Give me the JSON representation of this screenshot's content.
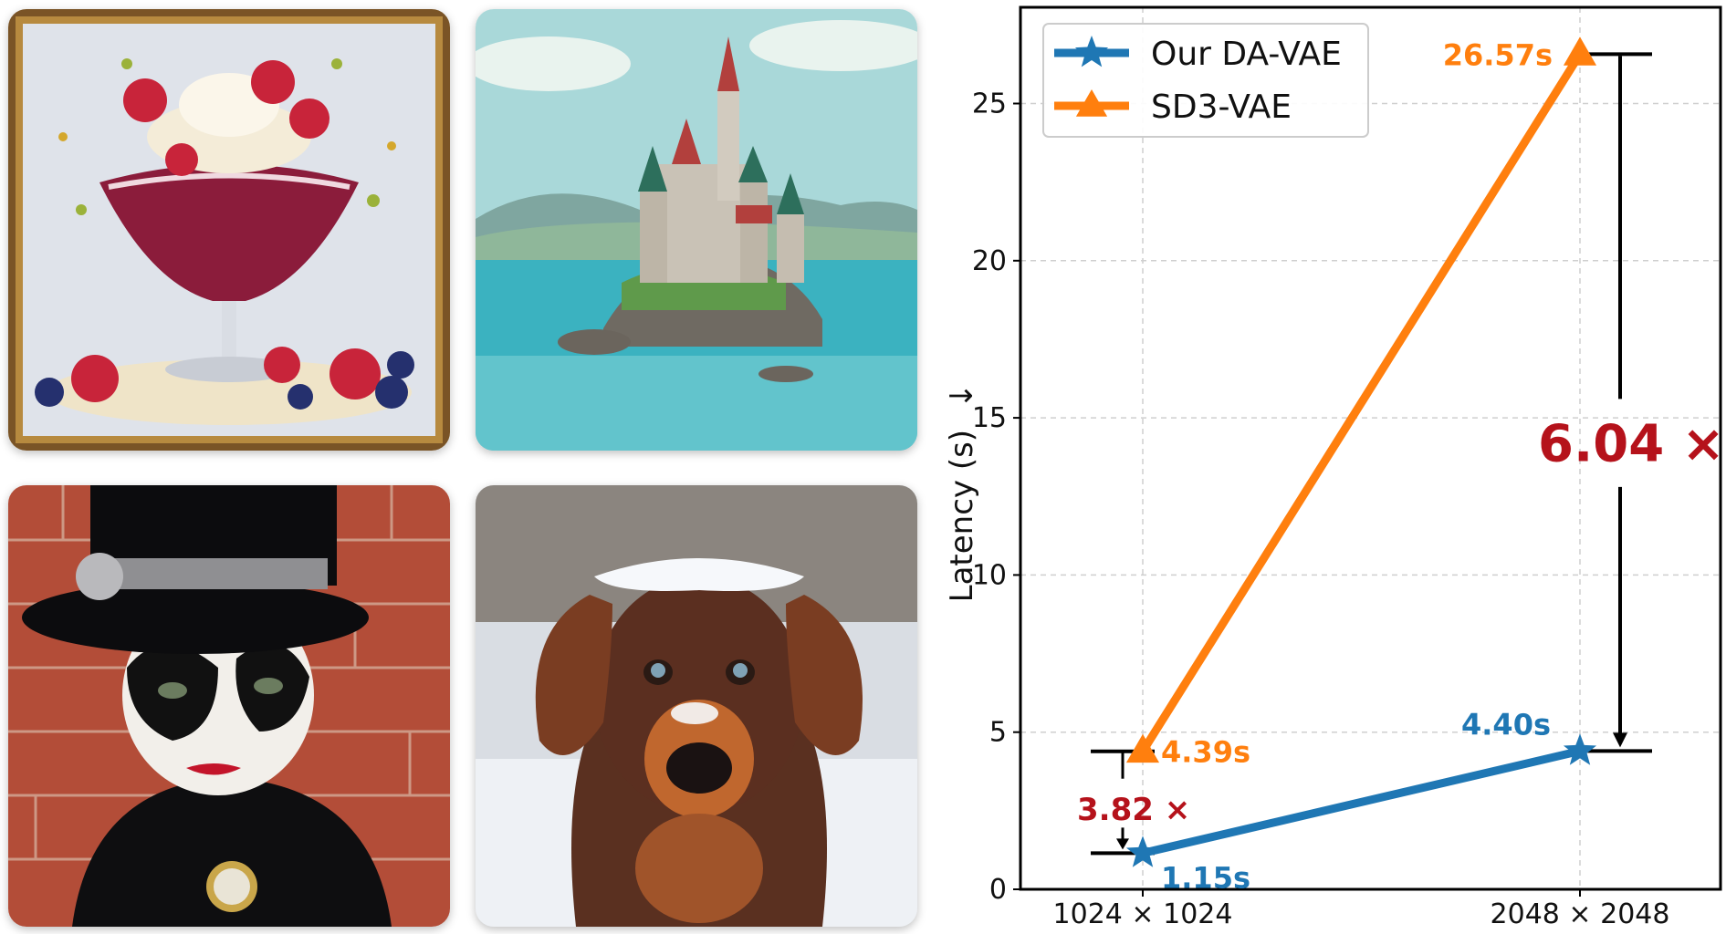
{
  "images": [
    {
      "subject": "dessert sundae painting"
    },
    {
      "subject": "castle on island illustration"
    },
    {
      "subject": "masked figure in top hat"
    },
    {
      "subject": "dog with snow on head"
    }
  ],
  "chart_data": {
    "type": "line",
    "x_ticks": [
      "1024 × 1024",
      "2048 × 2048"
    ],
    "ylabel": "Latency (s)",
    "ylabel_arrow": "↓",
    "ylim": [
      0,
      27.6
    ],
    "yticks": [
      0,
      5,
      10,
      15,
      20,
      25
    ],
    "grid": true,
    "legend_position": "top-left",
    "series": [
      {
        "name": "Our DA-VAE",
        "marker": "star",
        "color": "#1f77b4",
        "values": [
          1.15,
          4.4
        ],
        "labels": [
          "1.15s",
          "4.40s"
        ]
      },
      {
        "name": "SD3-VAE",
        "marker": "triangle",
        "color": "#ff7f0e",
        "values": [
          4.39,
          26.57
        ],
        "labels": [
          "4.39s",
          "26.57s"
        ]
      }
    ],
    "annotations": [
      {
        "text": "3.82 ×",
        "x_index": 0,
        "from": 4.39,
        "to": 1.15,
        "color": "#b5121b"
      },
      {
        "text": "6.04 ×",
        "x_index": 1,
        "from": 26.57,
        "to": 4.4,
        "color": "#b5121b"
      }
    ]
  }
}
